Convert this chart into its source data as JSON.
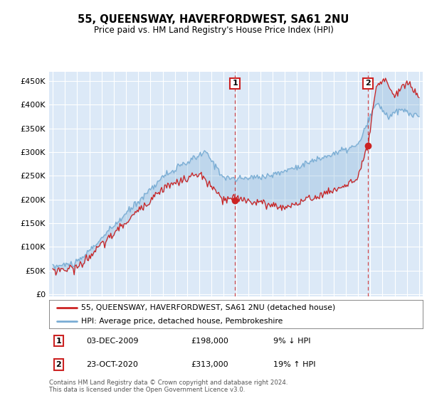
{
  "title": "55, QUEENSWAY, HAVERFORDWEST, SA61 2NU",
  "subtitle": "Price paid vs. HM Land Registry's House Price Index (HPI)",
  "background_color": "#dce9f7",
  "plot_bg_color": "#dce9f7",
  "hpi_color": "#7aadd4",
  "price_color": "#cc2222",
  "vline_color": "#cc2222",
  "yticks": [
    0,
    50000,
    100000,
    150000,
    200000,
    250000,
    300000,
    350000,
    400000,
    450000
  ],
  "ytick_labels": [
    "£0",
    "£50K",
    "£100K",
    "£150K",
    "£200K",
    "£250K",
    "£300K",
    "£350K",
    "£400K",
    "£450K"
  ],
  "sale1_date": 2009.92,
  "sale1_price": 198000,
  "sale2_date": 2020.81,
  "sale2_price": 313000,
  "legend_label1": "55, QUEENSWAY, HAVERFORDWEST, SA61 2NU (detached house)",
  "legend_label2": "HPI: Average price, detached house, Pembrokeshire",
  "table_row1": [
    "1",
    "03-DEC-2009",
    "£198,000",
    "9% ↓ HPI"
  ],
  "table_row2": [
    "2",
    "23-OCT-2020",
    "£313,000",
    "19% ↑ HPI"
  ],
  "footer": "Contains HM Land Registry data © Crown copyright and database right 2024.\nThis data is licensed under the Open Government Licence v3.0."
}
